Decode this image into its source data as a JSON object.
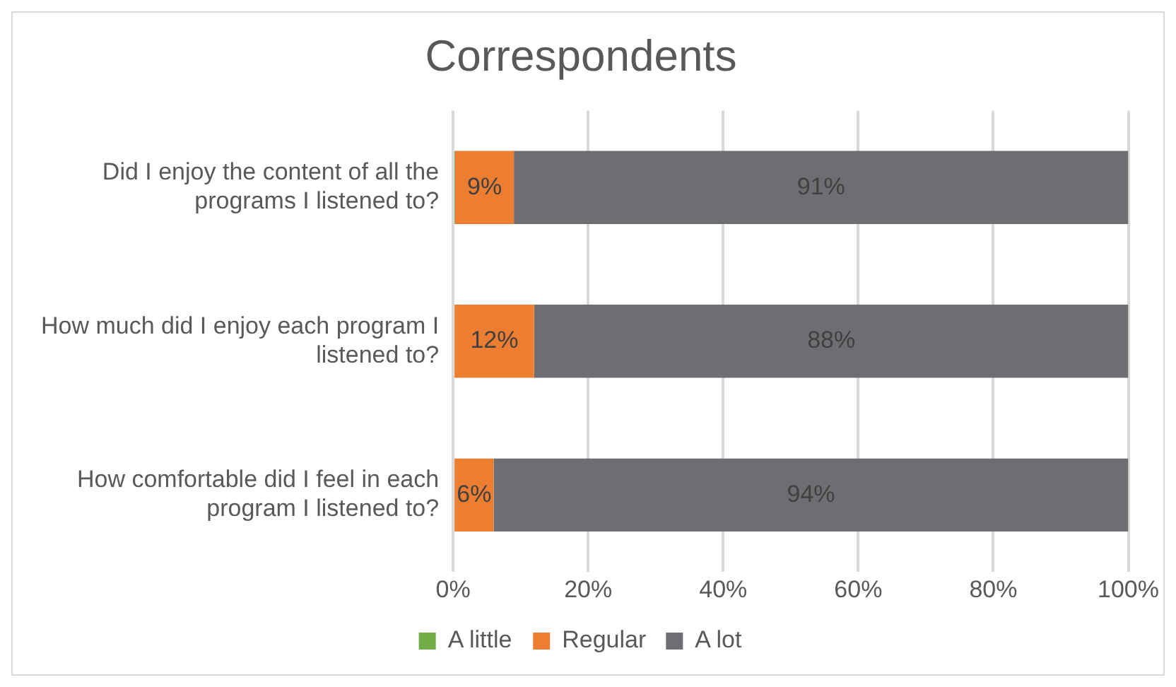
{
  "chart_data": {
    "type": "bar",
    "orientation": "horizontal",
    "stacked": true,
    "title": "Correspondents",
    "categories": [
      "Did I enjoy the content of all the programs I listened to?",
      "How much did I enjoy each program I listened to?",
      "How comfortable did I feel in each program I listened to?"
    ],
    "series": [
      {
        "name": "A little",
        "color": "#70ad47",
        "values": [
          0.3,
          0,
          0
        ]
      },
      {
        "name": "Regular",
        "color": "#ed7d31",
        "values": [
          8.7,
          12,
          6
        ],
        "value_labels": [
          "9%",
          "12%",
          "6%"
        ]
      },
      {
        "name": "A lot",
        "color": "#6d6e71",
        "values": [
          91,
          88,
          94
        ],
        "value_labels": [
          "91%",
          "88%",
          "94%"
        ]
      }
    ],
    "xlim": [
      0,
      100
    ],
    "xticks": [
      {
        "value": 0,
        "label": "0%"
      },
      {
        "value": 20,
        "label": "20%"
      },
      {
        "value": 40,
        "label": "40%"
      },
      {
        "value": 60,
        "label": "60%"
      },
      {
        "value": 80,
        "label": "80%"
      },
      {
        "value": 100,
        "label": "100%"
      }
    ],
    "grid": "x",
    "legend": "bottom"
  }
}
